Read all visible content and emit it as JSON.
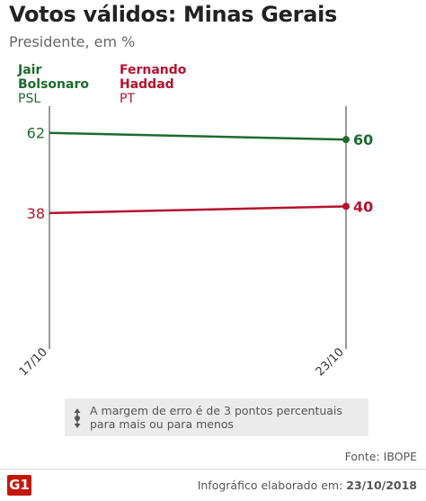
{
  "header": {
    "title": "Votos válidos: Minas Gerais",
    "subtitle": "Presidente, em %"
  },
  "legend": [
    {
      "name_line1": "Jair",
      "name_line2": "Bolsonaro",
      "party": "PSL",
      "color": "#1e6b2e"
    },
    {
      "name_line1": "Fernando",
      "name_line2": "Haddad",
      "party": "PT",
      "color": "#b5122c"
    }
  ],
  "chart_data": {
    "type": "line",
    "title": "Votos válidos: Minas Gerais",
    "subtitle": "Presidente, em %",
    "categories": [
      "17/10",
      "23/10"
    ],
    "series": [
      {
        "name": "Jair Bolsonaro",
        "values": [
          62,
          60
        ],
        "color": "#1e6b2e"
      },
      {
        "name": "Fernando Haddad",
        "values": [
          38,
          40
        ],
        "color": "#b5122c"
      }
    ],
    "ylim": [
      0,
      70
    ],
    "grid": false
  },
  "note": {
    "line1": "A margem de erro é de 3 pontos percentuais",
    "line2": "para mais ou para menos"
  },
  "source": "Fonte: IBOPE",
  "footer": {
    "logo": "G1",
    "credit_label": "Infográfico elaborado em:",
    "credit_date": "23/10/2018"
  }
}
